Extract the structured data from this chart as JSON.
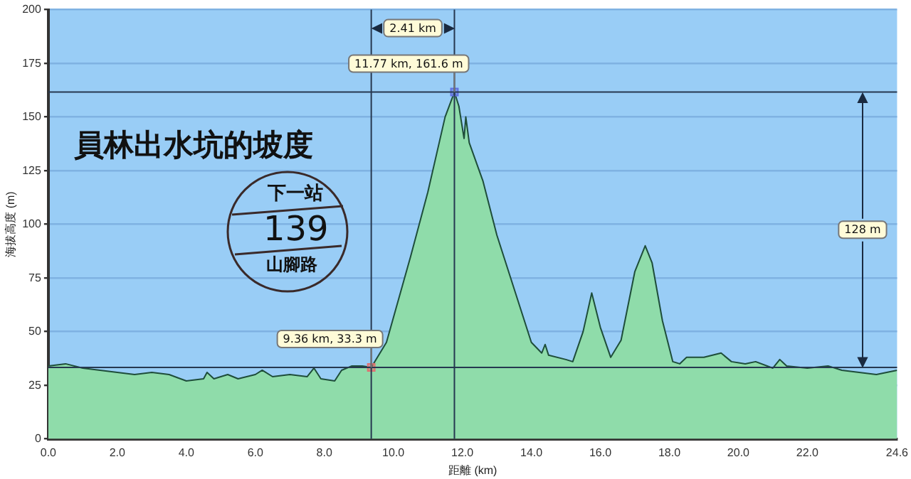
{
  "chart_data": {
    "type": "area",
    "xlabel": "距離 (km)",
    "ylabel": "海拔高度 (m)",
    "xlim": [
      0,
      24.6
    ],
    "ylim": [
      0,
      200
    ],
    "xticks": [
      {
        "value": 0,
        "label": "0.0"
      },
      {
        "value": 2,
        "label": "2.0"
      },
      {
        "value": 4,
        "label": "4.0"
      },
      {
        "value": 6,
        "label": "6.0"
      },
      {
        "value": 8,
        "label": "8.0"
      },
      {
        "value": 10,
        "label": "10.0"
      },
      {
        "value": 12,
        "label": "12.0"
      },
      {
        "value": 14,
        "label": "14.0"
      },
      {
        "value": 16,
        "label": "16.0"
      },
      {
        "value": 18,
        "label": "18.0"
      },
      {
        "value": 20,
        "label": "20.0"
      },
      {
        "value": 22,
        "label": "22.0"
      },
      24.6
    ],
    "yticks": [
      0,
      25,
      50,
      75,
      100,
      125,
      150,
      175,
      200
    ],
    "grid": "y",
    "legend": false,
    "series": [
      {
        "color": "#8fdcaa",
        "x": [
          0,
          0.5,
          1.0,
          1.5,
          2.0,
          2.5,
          3.0,
          3.5,
          4.0,
          4.5,
          4.6,
          4.8,
          5.2,
          5.5,
          6.0,
          6.2,
          6.5,
          7.0,
          7.5,
          7.7,
          7.9,
          8.3,
          8.5,
          8.8,
          9.1,
          9.36,
          9.8,
          10.5,
          11.0,
          11.5,
          11.77,
          11.9,
          12.05,
          12.1,
          12.2,
          12.6,
          13.0,
          13.5,
          14.0,
          14.3,
          14.4,
          14.5,
          15.0,
          15.2,
          15.5,
          15.75,
          16.0,
          16.3,
          16.6,
          17.0,
          17.3,
          17.5,
          17.8,
          18.1,
          18.3,
          18.5,
          19.0,
          19.5,
          19.8,
          20.2,
          20.5,
          21.0,
          21.2,
          21.4,
          22.0,
          22.6,
          23.0,
          23.5,
          24.0,
          24.6
        ],
        "values": [
          34,
          35,
          33,
          32,
          31,
          30,
          31,
          30,
          27,
          28,
          31,
          28,
          30,
          28,
          30,
          32,
          29,
          30,
          29,
          33,
          28,
          27,
          32,
          34,
          34,
          33.3,
          45,
          85,
          115,
          150,
          161.6,
          155,
          140,
          150,
          138,
          120,
          95,
          70,
          45,
          40,
          44,
          39,
          37,
          36,
          50,
          68,
          52,
          38,
          46,
          78,
          90,
          82,
          55,
          36,
          35,
          38,
          38,
          40,
          36,
          35,
          36,
          33,
          37,
          34,
          33,
          34,
          32,
          31,
          30,
          32
        ]
      },
      {
        "type": "scatter",
        "marker": "square",
        "x": [
          9.36,
          11.77
        ],
        "values": [
          33.3,
          161.6
        ],
        "colors": [
          "#e07070",
          "#6070e0"
        ]
      }
    ],
    "ref_lines": [
      {
        "axis": "x",
        "value": 9.36,
        "color": "#263850"
      },
      {
        "axis": "x",
        "value": 11.77,
        "color": "#263850"
      },
      {
        "axis": "y",
        "value": 33.3,
        "color": "#263850"
      },
      {
        "axis": "y",
        "value": 161.6,
        "color": "#263850"
      }
    ],
    "annotations": [
      "員林出水坑的坡度",
      "下一站",
      "139",
      "山腳路",
      "2.41 km",
      {
        "text": "11.77 km, 161.6 m",
        "x": 11.77,
        "y": 161.6
      },
      {
        "text": "9.36 km, 33.3 m",
        "x": 9.36,
        "y": 33.3
      },
      {
        "text": "128 m",
        "x": 23.6,
        "y": 97.45
      }
    ]
  }
}
